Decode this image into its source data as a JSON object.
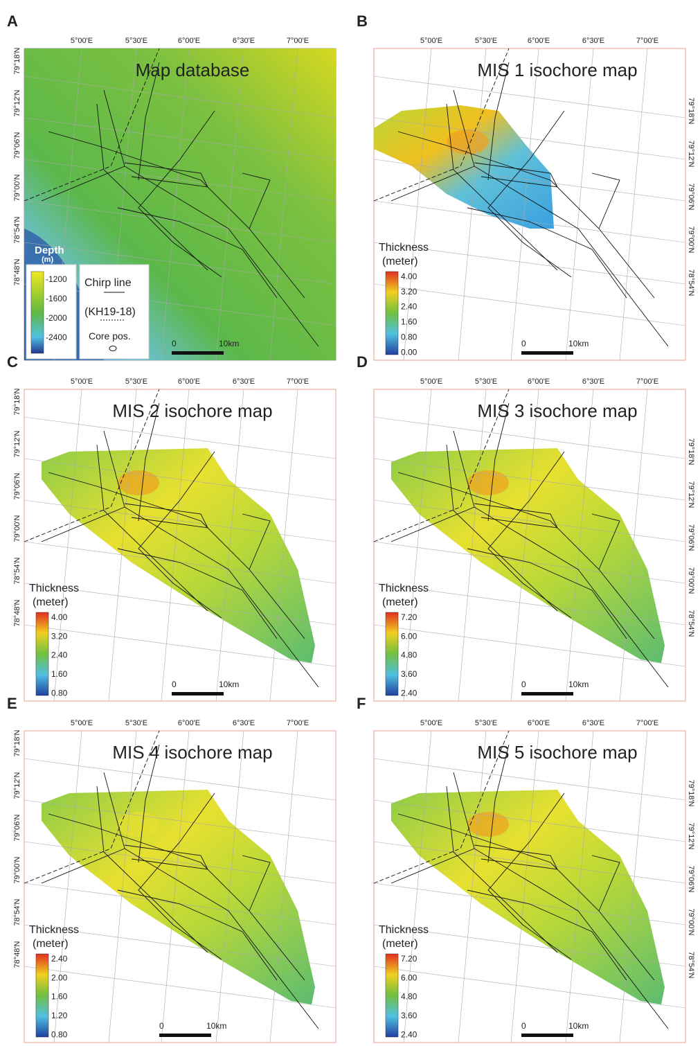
{
  "panels": [
    {
      "letter": "A",
      "title": "Map database",
      "lon_labels": [
        "5°00'E",
        "5°30'E",
        "6°00'E",
        "6°30'E",
        "7°00'E"
      ],
      "lat_labels": [
        "79°18'N",
        "79°12'N",
        "79°06'N",
        "79°00'N",
        "78°54'N",
        "78°48'N"
      ],
      "legend": {
        "title": "Depth",
        "unit": "(m)",
        "ticks": [
          "-1200",
          "-1600",
          "-2000",
          "-2400"
        ]
      },
      "key": {
        "line": "Chirp line",
        "cruise": "(KH19-18)",
        "core": "Core pos."
      },
      "scale": {
        "start": "0",
        "end": "10km"
      }
    },
    {
      "letter": "B",
      "title": "MIS 1 isochore map",
      "lon_labels": [
        "5°00'E",
        "5°30'E",
        "6°00'E",
        "6°30'E",
        "7°00'E"
      ],
      "lat_labels": [
        "79°18'N",
        "79°12'N",
        "79°06'N",
        "79°00'N",
        "78°54'N"
      ],
      "legend": {
        "title": "Thickness",
        "unit": "(meter)",
        "ticks": [
          "4.00",
          "3.20",
          "2.40",
          "1.60",
          "0.80",
          "0.00"
        ]
      },
      "scale": {
        "start": "0",
        "end": "10km"
      }
    },
    {
      "letter": "C",
      "title": "MIS 2 isochore map",
      "lon_labels": [
        "5°00'E",
        "5°30'E",
        "6°00'E",
        "6°30'E",
        "7°00'E"
      ],
      "lat_labels": [
        "79°18'N",
        "79°12'N",
        "79°06'N",
        "79°00'N",
        "78°54'N",
        "78°48'N"
      ],
      "legend": {
        "title": "Thickness",
        "unit": "(meter)",
        "ticks": [
          "4.00",
          "3.20",
          "2.40",
          "1.60",
          "0.80"
        ]
      },
      "scale": {
        "start": "0",
        "end": "10km"
      }
    },
    {
      "letter": "D",
      "title": "MIS 3 isochore map",
      "lon_labels": [
        "5°00'E",
        "5°30'E",
        "6°00'E",
        "6°30'E",
        "7°00'E"
      ],
      "lat_labels": [
        "79°18'N",
        "79°12'N",
        "79°06'N",
        "79°00'N",
        "78°54'N"
      ],
      "legend": {
        "title": "Thickness",
        "unit": "(meter)",
        "ticks": [
          "7.20",
          "6.00",
          "4.80",
          "3.60",
          "2.40"
        ]
      },
      "scale": {
        "start": "0",
        "end": "10km"
      }
    },
    {
      "letter": "E",
      "title": "MIS 4 isochore map",
      "lon_labels": [
        "5°00'E",
        "5°30'E",
        "6°00'E",
        "6°30'E",
        "7°00'E"
      ],
      "lat_labels": [
        "79°18'N",
        "79°12'N",
        "79°06'N",
        "79°00'N",
        "78°54'N",
        "78°48'N"
      ],
      "legend": {
        "title": "Thickness",
        "unit": "(meter)",
        "ticks": [
          "2.40",
          "2.00",
          "1.60",
          "1.20",
          "0.80"
        ]
      },
      "scale": {
        "start": "0",
        "end": "10km"
      }
    },
    {
      "letter": "F",
      "title": "MIS 5 isochore map",
      "lon_labels": [
        "5°00'E",
        "5°30'E",
        "6°00'E",
        "6°30'E",
        "7°00'E"
      ],
      "lat_labels": [
        "79°18'N",
        "79°12'N",
        "79°06'N",
        "79°00'N",
        "78°54'N"
      ],
      "legend": {
        "title": "Thickness",
        "unit": "(meter)",
        "ticks": [
          "7.20",
          "6.00",
          "4.80",
          "3.60",
          "2.40"
        ]
      },
      "scale": {
        "start": "0",
        "end": "10km"
      }
    }
  ]
}
